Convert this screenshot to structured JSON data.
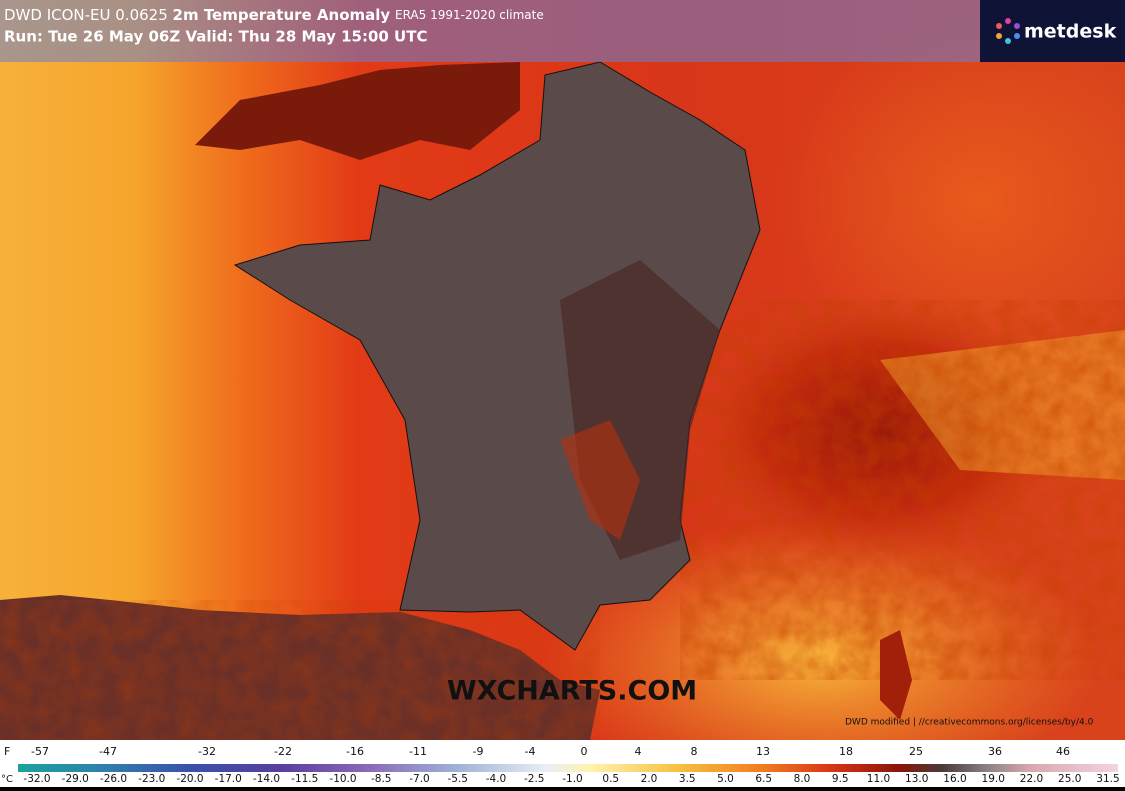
{
  "header": {
    "model": "DWD ICON-EU 0.0625",
    "title": "2m Temperature Anomaly",
    "climate": "ERA5 1991-2020 climate",
    "run_line": "Run: Tue 26 May 06Z Valid: Thu 28 May 15:00 UTC"
  },
  "logo": "metdesk",
  "watermark": "WXCHARTS.COM",
  "credit": "DWD modified | //creativecommons.org/licenses/by/4.0",
  "legend": {
    "f_unit": "F",
    "f_labels": [
      "-57",
      "-47",
      "-32",
      "-22",
      "-16",
      "-11",
      "-9",
      "-4",
      "0",
      "4",
      "8",
      "13",
      "18",
      "25",
      "36",
      "46"
    ],
    "c_unit": "°C",
    "c_labels": [
      "-32.0",
      "-29.0",
      "-26.0",
      "-23.0",
      "-20.0",
      "-17.0",
      "-14.0",
      "-11.5",
      "-10.0",
      "-8.5",
      "-7.0",
      "-5.5",
      "-4.0",
      "-2.5",
      "-1.0",
      "0.5",
      "2.0",
      "3.5",
      "5.0",
      "6.5",
      "8.0",
      "9.5",
      "11.0",
      "13.0",
      "16.0",
      "19.0",
      "22.0",
      "25.0",
      "31.5"
    ]
  }
}
